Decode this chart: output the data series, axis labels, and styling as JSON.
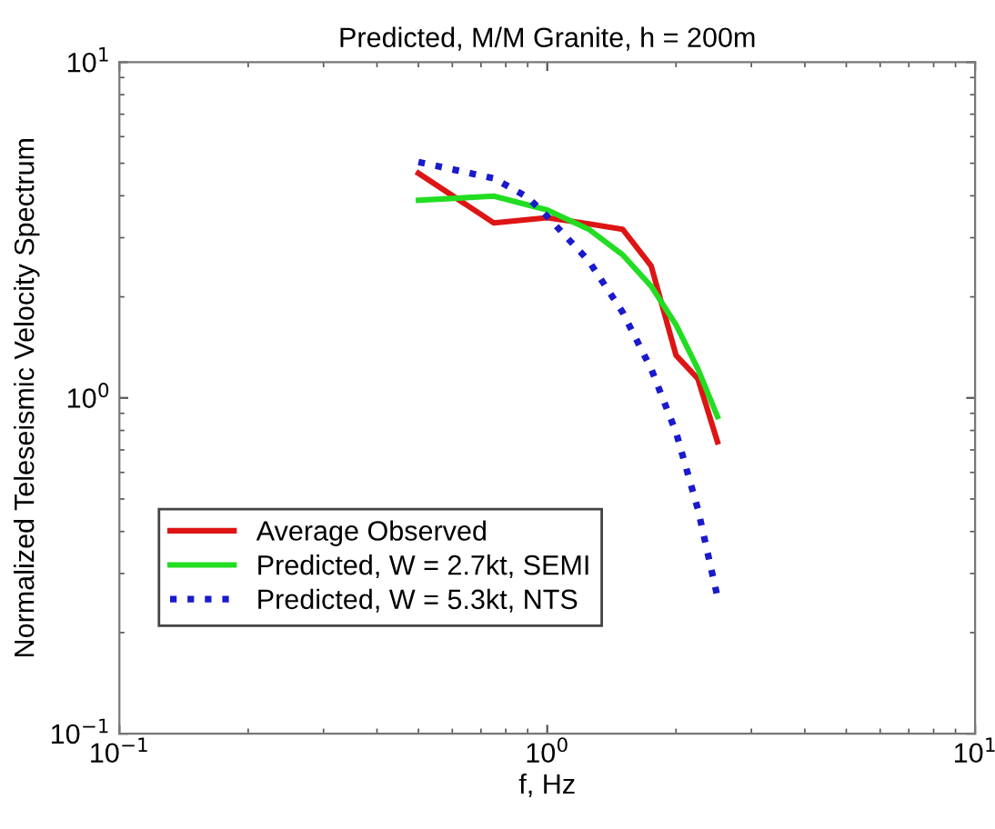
{
  "chart_data": {
    "type": "line",
    "title": "Predicted, M/M Granite, h = 200m",
    "xlabel": "f, Hz",
    "ylabel": "Normalized Teleseismic Velocity Spectrum",
    "log": "xy",
    "xlim": [
      0.1,
      10
    ],
    "ylim": [
      0.1,
      10
    ],
    "xticks": [
      {
        "value": 0.1,
        "label": "10$^{−1}$"
      },
      {
        "value": 1,
        "label": "10$^{0}$"
      },
      {
        "value": 10,
        "label": "10$^{1}$"
      }
    ],
    "yticks": [
      {
        "value": 0.1,
        "label": "10$^{−1}$"
      },
      {
        "value": 1,
        "label": "10$^{0}$"
      },
      {
        "value": 10,
        "label": "10$^{1}$"
      }
    ],
    "grid": false,
    "legend": "bottom left",
    "marker": "none",
    "series": [
      {
        "name": "Average Observed",
        "color": "#dd1515",
        "line_style": "solid",
        "x": [
          0.5,
          0.75,
          1.0,
          1.25,
          1.5,
          1.75,
          2.0,
          2.25,
          2.5
        ],
        "values": [
          4.67,
          3.32,
          3.44,
          3.3,
          3.18,
          2.47,
          1.34,
          1.14,
          0.74
        ]
      },
      {
        "name": "Predicted, W = 2.7kt, SEMI",
        "color": "#22dd22",
        "line_style": "solid",
        "x": [
          0.5,
          0.75,
          1.0,
          1.25,
          1.5,
          1.75,
          2.0,
          2.25,
          2.5
        ],
        "values": [
          3.88,
          3.99,
          3.63,
          3.18,
          2.67,
          2.15,
          1.65,
          1.22,
          0.88
        ]
      },
      {
        "name": "Predicted, W = 5.3kt, NTS",
        "color": "#1a1acc",
        "line_style": "dotted",
        "x": [
          0.5,
          0.75,
          0.9,
          1.0,
          1.25,
          1.5,
          1.75,
          2.0,
          2.25,
          2.5
        ],
        "values": [
          5.04,
          4.51,
          3.96,
          3.47,
          2.56,
          1.8,
          1.22,
          0.79,
          0.466,
          0.255
        ]
      }
    ]
  }
}
